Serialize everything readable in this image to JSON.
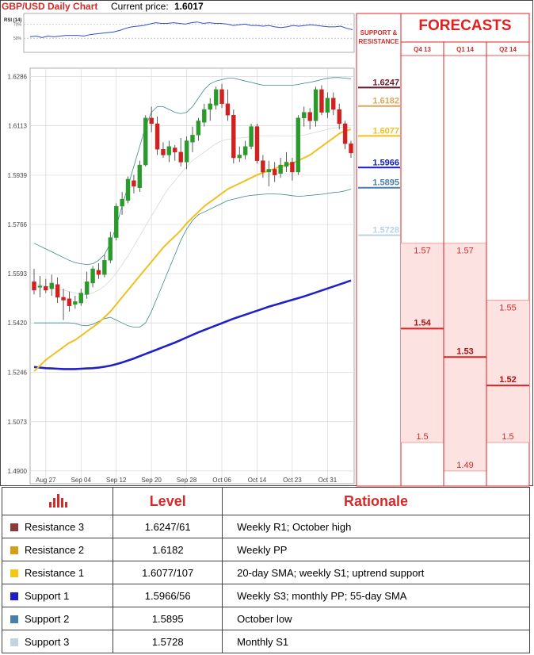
{
  "header": {
    "title": "GBP/USD Daily Chart",
    "price_label": "Current price:",
    "price_value": "1.6017"
  },
  "rsi": {
    "label": "RSI (14)",
    "tick_70": "70%",
    "tick_50": "50%",
    "values": [
      52,
      53,
      51,
      53,
      52,
      53,
      54,
      54,
      54,
      53,
      55,
      56,
      57,
      58,
      59,
      61,
      64,
      66,
      67,
      68,
      70,
      72,
      71,
      71,
      72,
      71,
      70,
      72,
      73,
      71,
      72,
      71,
      71,
      70,
      68,
      69,
      70,
      68,
      68,
      67,
      68,
      66,
      65,
      66,
      68,
      67,
      68,
      69,
      68,
      67,
      66,
      66,
      67,
      64,
      62
    ]
  },
  "chart_data": {
    "type": "candlestick",
    "title": "GBP/USD Daily Chart",
    "y_ticks": [
      "1.6286",
      "1.6113",
      "1.5939",
      "1.5766",
      "1.5593",
      "1.5420",
      "1.5246",
      "1.5073",
      "1.4900"
    ],
    "ylim": [
      1.4855,
      1.6315
    ],
    "x_ticks": [
      "Aug 27",
      "Sep 04",
      "Sep 12",
      "Sep 20",
      "Sep 28",
      "Oct 06",
      "Oct 14",
      "Oct 23",
      "Oct 31"
    ],
    "grid": true,
    "candles": [
      {
        "o": 1.5565,
        "h": 1.561,
        "l": 1.552,
        "c": 1.5535
      },
      {
        "o": 1.5545,
        "h": 1.5585,
        "l": 1.551,
        "c": 1.555
      },
      {
        "o": 1.5548,
        "h": 1.5575,
        "l": 1.5525,
        "c": 1.5535
      },
      {
        "o": 1.554,
        "h": 1.559,
        "l": 1.5515,
        "c": 1.556
      },
      {
        "o": 1.5555,
        "h": 1.558,
        "l": 1.549,
        "c": 1.551
      },
      {
        "o": 1.551,
        "h": 1.554,
        "l": 1.543,
        "c": 1.55
      },
      {
        "o": 1.5505,
        "h": 1.553,
        "l": 1.546,
        "c": 1.548
      },
      {
        "o": 1.5485,
        "h": 1.5515,
        "l": 1.547,
        "c": 1.5495
      },
      {
        "o": 1.549,
        "h": 1.554,
        "l": 1.548,
        "c": 1.5525
      },
      {
        "o": 1.552,
        "h": 1.56,
        "l": 1.5505,
        "c": 1.5565
      },
      {
        "o": 1.556,
        "h": 1.562,
        "l": 1.5545,
        "c": 1.561
      },
      {
        "o": 1.5605,
        "h": 1.563,
        "l": 1.5575,
        "c": 1.559
      },
      {
        "o": 1.559,
        "h": 1.566,
        "l": 1.558,
        "c": 1.564
      },
      {
        "o": 1.564,
        "h": 1.574,
        "l": 1.563,
        "c": 1.572
      },
      {
        "o": 1.572,
        "h": 1.584,
        "l": 1.571,
        "c": 1.583
      },
      {
        "o": 1.583,
        "h": 1.588,
        "l": 1.58,
        "c": 1.5855
      },
      {
        "o": 1.585,
        "h": 1.5935,
        "l": 1.584,
        "c": 1.5925
      },
      {
        "o": 1.592,
        "h": 1.594,
        "l": 1.5875,
        "c": 1.59
      },
      {
        "o": 1.5895,
        "h": 1.599,
        "l": 1.588,
        "c": 1.5975
      },
      {
        "o": 1.5975,
        "h": 1.615,
        "l": 1.597,
        "c": 1.614
      },
      {
        "o": 1.614,
        "h": 1.618,
        "l": 1.609,
        "c": 1.612
      },
      {
        "o": 1.612,
        "h": 1.6145,
        "l": 1.601,
        "c": 1.603
      },
      {
        "o": 1.603,
        "h": 1.6055,
        "l": 1.6,
        "c": 1.601
      },
      {
        "o": 1.601,
        "h": 1.606,
        "l": 1.5985,
        "c": 1.604
      },
      {
        "o": 1.6035,
        "h": 1.6045,
        "l": 1.599,
        "c": 1.602
      },
      {
        "o": 1.602,
        "h": 1.607,
        "l": 1.597,
        "c": 1.5985
      },
      {
        "o": 1.5985,
        "h": 1.6075,
        "l": 1.596,
        "c": 1.606
      },
      {
        "o": 1.6055,
        "h": 1.611,
        "l": 1.602,
        "c": 1.608
      },
      {
        "o": 1.608,
        "h": 1.614,
        "l": 1.606,
        "c": 1.613
      },
      {
        "o": 1.6125,
        "h": 1.619,
        "l": 1.611,
        "c": 1.617
      },
      {
        "o": 1.617,
        "h": 1.621,
        "l": 1.613,
        "c": 1.619
      },
      {
        "o": 1.6185,
        "h": 1.625,
        "l": 1.617,
        "c": 1.624
      },
      {
        "o": 1.624,
        "h": 1.626,
        "l": 1.6175,
        "c": 1.619
      },
      {
        "o": 1.619,
        "h": 1.624,
        "l": 1.613,
        "c": 1.615
      },
      {
        "o": 1.615,
        "h": 1.617,
        "l": 1.598,
        "c": 1.6
      },
      {
        "o": 1.6,
        "h": 1.604,
        "l": 1.5985,
        "c": 1.601
      },
      {
        "o": 1.601,
        "h": 1.606,
        "l": 1.5995,
        "c": 1.604
      },
      {
        "o": 1.604,
        "h": 1.612,
        "l": 1.603,
        "c": 1.611
      },
      {
        "o": 1.611,
        "h": 1.612,
        "l": 1.598,
        "c": 1.599
      },
      {
        "o": 1.599,
        "h": 1.601,
        "l": 1.593,
        "c": 1.595
      },
      {
        "o": 1.595,
        "h": 1.599,
        "l": 1.59,
        "c": 1.596
      },
      {
        "o": 1.596,
        "h": 1.5985,
        "l": 1.5915,
        "c": 1.594
      },
      {
        "o": 1.5945,
        "h": 1.6,
        "l": 1.593,
        "c": 1.5975
      },
      {
        "o": 1.597,
        "h": 1.602,
        "l": 1.595,
        "c": 1.5985
      },
      {
        "o": 1.5985,
        "h": 1.6,
        "l": 1.592,
        "c": 1.595
      },
      {
        "o": 1.595,
        "h": 1.615,
        "l": 1.594,
        "c": 1.614
      },
      {
        "o": 1.614,
        "h": 1.618,
        "l": 1.611,
        "c": 1.616
      },
      {
        "o": 1.616,
        "h": 1.6175,
        "l": 1.61,
        "c": 1.613
      },
      {
        "o": 1.613,
        "h": 1.625,
        "l": 1.611,
        "c": 1.624
      },
      {
        "o": 1.624,
        "h": 1.6255,
        "l": 1.615,
        "c": 1.616
      },
      {
        "o": 1.616,
        "h": 1.623,
        "l": 1.614,
        "c": 1.621
      },
      {
        "o": 1.621,
        "h": 1.623,
        "l": 1.615,
        "c": 1.617
      },
      {
        "o": 1.617,
        "h": 1.619,
        "l": 1.61,
        "c": 1.612
      },
      {
        "o": 1.612,
        "h": 1.613,
        "l": 1.603,
        "c": 1.605
      },
      {
        "o": 1.605,
        "h": 1.606,
        "l": 1.6,
        "c": 1.6017
      }
    ],
    "sma_yellow": [
      1.525,
      1.527,
      1.529,
      1.5305,
      1.532,
      1.5335,
      1.535,
      1.536,
      1.5375,
      1.539,
      1.5405,
      1.542,
      1.544,
      1.546,
      1.5485,
      1.551,
      1.5535,
      1.556,
      1.5585,
      1.561,
      1.5635,
      1.566,
      1.5685,
      1.5705,
      1.5725,
      1.5745,
      1.577,
      1.579,
      1.581,
      1.583,
      1.5845,
      1.586,
      1.5875,
      1.589,
      1.59,
      1.591,
      1.592,
      1.593,
      1.594,
      1.5948,
      1.5955,
      1.5962,
      1.597,
      1.5975,
      1.598,
      1.599,
      1.6,
      1.601,
      1.6025,
      1.604,
      1.6055,
      1.607,
      1.6085,
      1.6095,
      1.61
    ],
    "sma_blue": [
      1.5265,
      1.5263,
      1.5261,
      1.526,
      1.5259,
      1.5258,
      1.5258,
      1.5258,
      1.5259,
      1.526,
      1.5261,
      1.5263,
      1.5266,
      1.527,
      1.5275,
      1.5281,
      1.5288,
      1.5295,
      1.5303,
      1.5311,
      1.5319,
      1.5327,
      1.5335,
      1.5343,
      1.5351,
      1.536,
      1.5369,
      1.5378,
      1.5387,
      1.5395,
      1.5403,
      1.5411,
      1.5419,
      1.5427,
      1.5435,
      1.5442,
      1.5449,
      1.5456,
      1.5463,
      1.547,
      1.5477,
      1.5483,
      1.5489,
      1.5495,
      1.5501,
      1.5507,
      1.5513,
      1.552,
      1.5527,
      1.5534,
      1.5541,
      1.5548,
      1.5555,
      1.5562,
      1.5569
    ],
    "bb_upper": [
      1.57,
      1.569,
      1.568,
      1.567,
      1.566,
      1.565,
      1.564,
      1.5632,
      1.5628,
      1.5625,
      1.5628,
      1.564,
      1.566,
      1.57,
      1.576,
      1.583,
      1.59,
      1.597,
      1.604,
      1.611,
      1.616,
      1.618,
      1.618,
      1.617,
      1.616,
      1.6155,
      1.616,
      1.618,
      1.621,
      1.624,
      1.626,
      1.627,
      1.6275,
      1.628,
      1.628,
      1.6275,
      1.627,
      1.6265,
      1.626,
      1.6255,
      1.6255,
      1.6255,
      1.6255,
      1.6255,
      1.6255,
      1.6258,
      1.6262,
      1.6265,
      1.627,
      1.6275,
      1.628,
      1.6282,
      1.6282,
      1.628,
      1.6278
    ],
    "bb_mid": [
      1.556,
      1.5555,
      1.555,
      1.5545,
      1.554,
      1.5535,
      1.553,
      1.5525,
      1.552,
      1.552,
      1.5525,
      1.5535,
      1.555,
      1.557,
      1.5595,
      1.5625,
      1.5655,
      1.569,
      1.5725,
      1.576,
      1.5795,
      1.583,
      1.5865,
      1.5895,
      1.592,
      1.5945,
      1.597,
      1.599,
      1.6005,
      1.602,
      1.6035,
      1.605,
      1.606,
      1.6065,
      1.6068,
      1.607,
      1.6072,
      1.6075,
      1.6077,
      1.6078,
      1.6078,
      1.6078,
      1.6077,
      1.6077,
      1.6077,
      1.6078,
      1.608,
      1.6085,
      1.609,
      1.6095,
      1.61,
      1.6105,
      1.6107,
      1.6108,
      1.6107
    ],
    "bb_lower": [
      1.542,
      1.542,
      1.542,
      1.542,
      1.542,
      1.542,
      1.542,
      1.5418,
      1.5412,
      1.541,
      1.5415,
      1.5425,
      1.5435,
      1.544,
      1.543,
      1.542,
      1.541,
      1.5405,
      1.5405,
      1.542,
      1.546,
      1.551,
      1.556,
      1.561,
      1.566,
      1.571,
      1.575,
      1.578,
      1.58,
      1.581,
      1.582,
      1.583,
      1.584,
      1.585,
      1.5855,
      1.586,
      1.5865,
      1.5868,
      1.587,
      1.5872,
      1.5873,
      1.5873,
      1.5872,
      1.587,
      1.5867,
      1.5865,
      1.5866,
      1.5868,
      1.587,
      1.5872,
      1.5875,
      1.5878,
      1.588,
      1.5884,
      1.589
    ],
    "sr_header": "SUPPORT & RESISTANCE",
    "sr_levels": [
      {
        "label": "1.6247",
        "value": 1.6247,
        "color": "#6b1a2a"
      },
      {
        "label": "1.6182",
        "value": 1.6182,
        "color": "#d8a85a"
      },
      {
        "label": "1.6077",
        "value": 1.6077,
        "color": "#f0c020"
      },
      {
        "label": "1.5966",
        "value": 1.5966,
        "color": "#1520c0"
      },
      {
        "label": "1.5895",
        "value": 1.5895,
        "color": "#4a7fa8"
      },
      {
        "label": "1.5728",
        "value": 1.5728,
        "color": "#b8d4e4"
      }
    ],
    "forecast_title": "FORECASTS",
    "forecast_columns": [
      "Q4 13",
      "Q1 14",
      "Q2 14"
    ],
    "forecasts": [
      {
        "quarter": "Q4 13",
        "high": 1.57,
        "median": 1.54,
        "low": 1.5,
        "high_label": "1.57",
        "median_label": "1.54",
        "low_label": "1.5"
      },
      {
        "quarter": "Q1 14",
        "high": 1.57,
        "median": 1.53,
        "low": 1.49,
        "high_label": "1.57",
        "median_label": "1.53",
        "low_label": "1.49"
      },
      {
        "quarter": "Q2 14",
        "high": 1.55,
        "median": 1.52,
        "low": 1.5,
        "high_label": "1.55",
        "median_label": "1.52",
        "low_label": "1.5"
      }
    ]
  },
  "levels_table": {
    "header": {
      "level": "Level",
      "rationale": "Rationale"
    },
    "icon_color": "#d42a2a",
    "rows": [
      {
        "label": "Resistance 3",
        "level": "1.6247/61",
        "rationale": "Weekly R1; October high",
        "color": "#8b3a3a"
      },
      {
        "label": "Resistance 2",
        "level": "1.6182",
        "rationale": "Weekly PP",
        "color": "#d4a017"
      },
      {
        "label": "Resistance 1",
        "level": "1.6077/107",
        "rationale": "20-day SMA; weekly S1; uptrend support",
        "color": "#f5c518"
      },
      {
        "label": "Support 1",
        "level": "1.5966/56",
        "rationale": "Weekly S3; monthly PP; 55-day SMA",
        "color": "#1a1ad4"
      },
      {
        "label": "Support 2",
        "level": "1.5895",
        "rationale": "October low",
        "color": "#4a7fa8"
      },
      {
        "label": "Support 3",
        "level": "1.5728",
        "rationale": "Monthly S1",
        "color": "#c0d4e4"
      }
    ]
  }
}
